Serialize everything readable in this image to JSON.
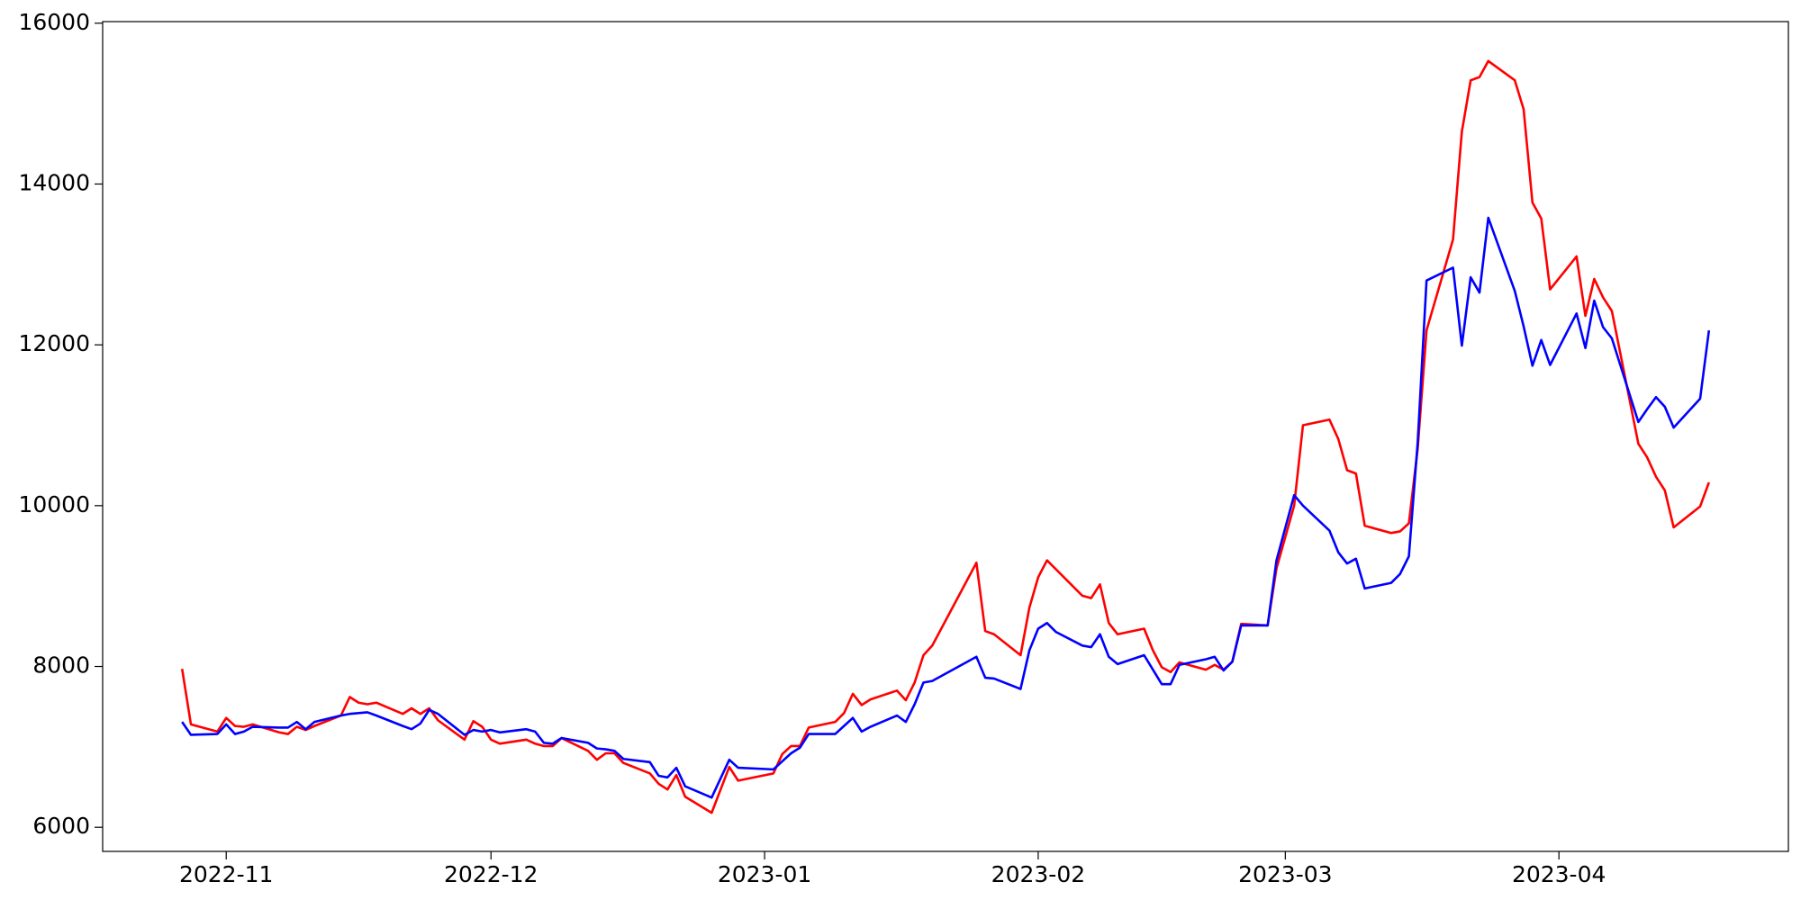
{
  "chart_data": {
    "type": "line",
    "x": [
      19292,
      19293,
      19296,
      19297,
      19298,
      19299,
      19300,
      19303,
      19304,
      19305,
      19306,
      19307,
      19310,
      19311,
      19312,
      19313,
      19314,
      19317,
      19318,
      19319,
      19320,
      19321,
      19324,
      19325,
      19326,
      19327,
      19328,
      19331,
      19332,
      19333,
      19334,
      19335,
      19338,
      19339,
      19340,
      19341,
      19342,
      19345,
      19346,
      19347,
      19348,
      19349,
      19352,
      19354,
      19355,
      19359,
      19360,
      19361,
      19362,
      19363,
      19366,
      19367,
      19368,
      19369,
      19370,
      19373,
      19374,
      19375,
      19376,
      19377,
      19382,
      19383,
      19384,
      19387,
      19388,
      19389,
      19390,
      19391,
      19394,
      19395,
      19396,
      19397,
      19398,
      19401,
      19402,
      19403,
      19404,
      19405,
      19408,
      19409,
      19410,
      19411,
      19412,
      19415,
      19416,
      19418,
      19419,
      19422,
      19423,
      19424,
      19425,
      19426,
      19429,
      19430,
      19431,
      19432,
      19433,
      19436,
      19437,
      19438,
      19439,
      19440,
      19443,
      19444,
      19445,
      19446,
      19447,
      19450,
      19451,
      19452,
      19453,
      19454,
      19457,
      19458,
      19459,
      19460,
      19461,
      19464,
      19465
    ],
    "series": [
      {
        "color": "#ff0000",
        "values": [
          7970,
          7280,
          7190,
          7360,
          7260,
          7250,
          7280,
          7180,
          7160,
          7250,
          7210,
          7260,
          7390,
          7620,
          7550,
          7530,
          7550,
          7410,
          7480,
          7410,
          7480,
          7330,
          7090,
          7320,
          7250,
          7090,
          7040,
          7090,
          7040,
          7010,
          7010,
          7110,
          6950,
          6840,
          6920,
          6920,
          6800,
          6670,
          6540,
          6470,
          6650,
          6380,
          6180,
          6750,
          6580,
          6670,
          6910,
          7010,
          7010,
          7240,
          7310,
          7420,
          7660,
          7520,
          7590,
          7700,
          7580,
          7800,
          8140,
          8260,
          9290,
          8440,
          8400,
          8140,
          8730,
          9110,
          9320,
          9210,
          8880,
          8850,
          9020,
          8540,
          8400,
          8470,
          8200,
          7990,
          7930,
          8050,
          7960,
          8020,
          7960,
          8060,
          8530,
          8510,
          9220,
          10000,
          11000,
          11070,
          10830,
          10440,
          10400,
          9750,
          9660,
          9680,
          9780,
          10710,
          12180,
          13310,
          14650,
          15290,
          15330,
          15530,
          15290,
          14930,
          13770,
          13570,
          12690,
          13100,
          12360,
          12820,
          12590,
          12420,
          10770,
          10600,
          10360,
          10190,
          9730,
          9990,
          10290
        ]
      },
      {
        "color": "#0000ff",
        "values": [
          7310,
          7150,
          7160,
          7280,
          7160,
          7190,
          7250,
          7240,
          7240,
          7310,
          7220,
          7310,
          7390,
          7410,
          7420,
          7430,
          7390,
          7260,
          7220,
          7290,
          7460,
          7410,
          7150,
          7210,
          7190,
          7210,
          7180,
          7220,
          7190,
          7050,
          7040,
          7110,
          7050,
          6980,
          6970,
          6950,
          6850,
          6810,
          6640,
          6620,
          6740,
          6510,
          6370,
          6840,
          6740,
          6720,
          6820,
          6920,
          6990,
          7160,
          7160,
          7260,
          7360,
          7190,
          7250,
          7390,
          7310,
          7530,
          7800,
          7820,
          8120,
          7860,
          7850,
          7720,
          8200,
          8470,
          8540,
          8430,
          8260,
          8240,
          8400,
          8120,
          8030,
          8140,
          7960,
          7780,
          7780,
          8020,
          8090,
          8120,
          7950,
          8060,
          8510,
          8510,
          9320,
          10130,
          10000,
          9690,
          9420,
          9280,
          9340,
          8970,
          9040,
          9150,
          9370,
          10790,
          12800,
          12960,
          11990,
          12840,
          12650,
          13580,
          12670,
          12230,
          11740,
          12060,
          11750,
          12390,
          11960,
          12550,
          12220,
          12080,
          11040,
          11200,
          11350,
          11230,
          10970,
          11330,
          12180
        ]
      }
    ],
    "xlim": [
      19283,
      19474
    ],
    "xticks": [
      {
        "value": 19297,
        "label": "2022-11"
      },
      {
        "value": 19327,
        "label": "2022-12"
      },
      {
        "value": 19358,
        "label": "2023-01"
      },
      {
        "value": 19389,
        "label": "2023-02"
      },
      {
        "value": 19417,
        "label": "2023-03"
      },
      {
        "value": 19448,
        "label": "2023-04"
      }
    ],
    "ylim": [
      5700,
      16020
    ],
    "yticks": [
      6000,
      8000,
      10000,
      12000,
      14000,
      16000
    ],
    "grid": false
  }
}
